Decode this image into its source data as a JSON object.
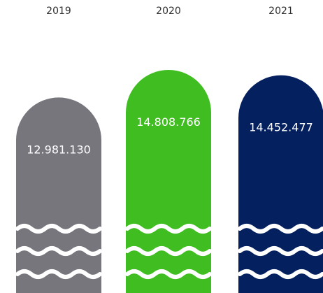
{
  "chart_data": {
    "type": "bar",
    "categories": [
      "2019",
      "2020",
      "2021"
    ],
    "values": [
      12981130,
      14808766,
      14452477
    ],
    "value_labels": [
      "12.981.130",
      "14.808.766",
      "14.452.477"
    ],
    "colors": [
      "#78767d",
      "#40be21",
      "#05205f"
    ],
    "title": "",
    "xlabel": "",
    "ylabel": "",
    "grid": false,
    "legend": "none"
  }
}
